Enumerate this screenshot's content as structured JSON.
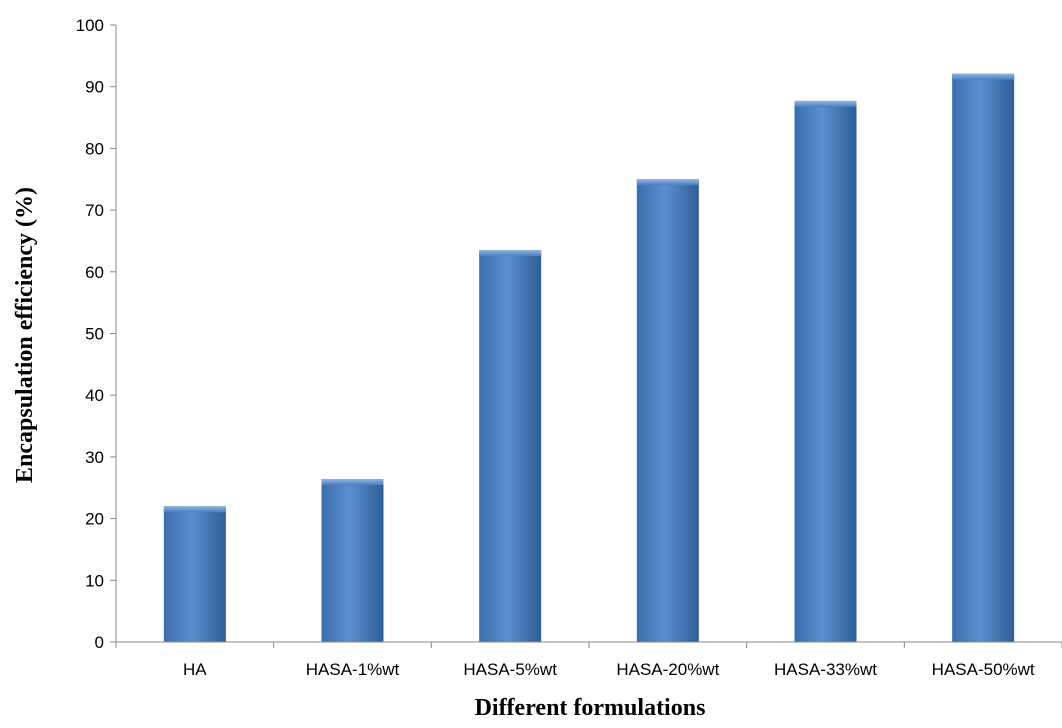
{
  "chart_data": {
    "type": "bar",
    "title": "",
    "xlabel": "Different formulations",
    "ylabel": "Encapsulation efficiency (%)",
    "categories": [
      "HA",
      "HASA-1%wt",
      "HASA-5%wt",
      "HASA-20%wt",
      "HASA-33%wt",
      "HASA-50%wt"
    ],
    "values": [
      22,
      26.4,
      63.5,
      75,
      87.7,
      92.1
    ],
    "ylim": [
      0,
      100
    ],
    "yticks": [
      "0",
      "10",
      "20",
      "30",
      "40",
      "50",
      "60",
      "70",
      "80",
      "90",
      "100"
    ],
    "grid": false,
    "legend": "none",
    "colors": {
      "bar": "#4a7ebb",
      "bar_light": "#6a9ad6",
      "bar_dark": "#2f5e96",
      "axis": "#888888"
    }
  }
}
